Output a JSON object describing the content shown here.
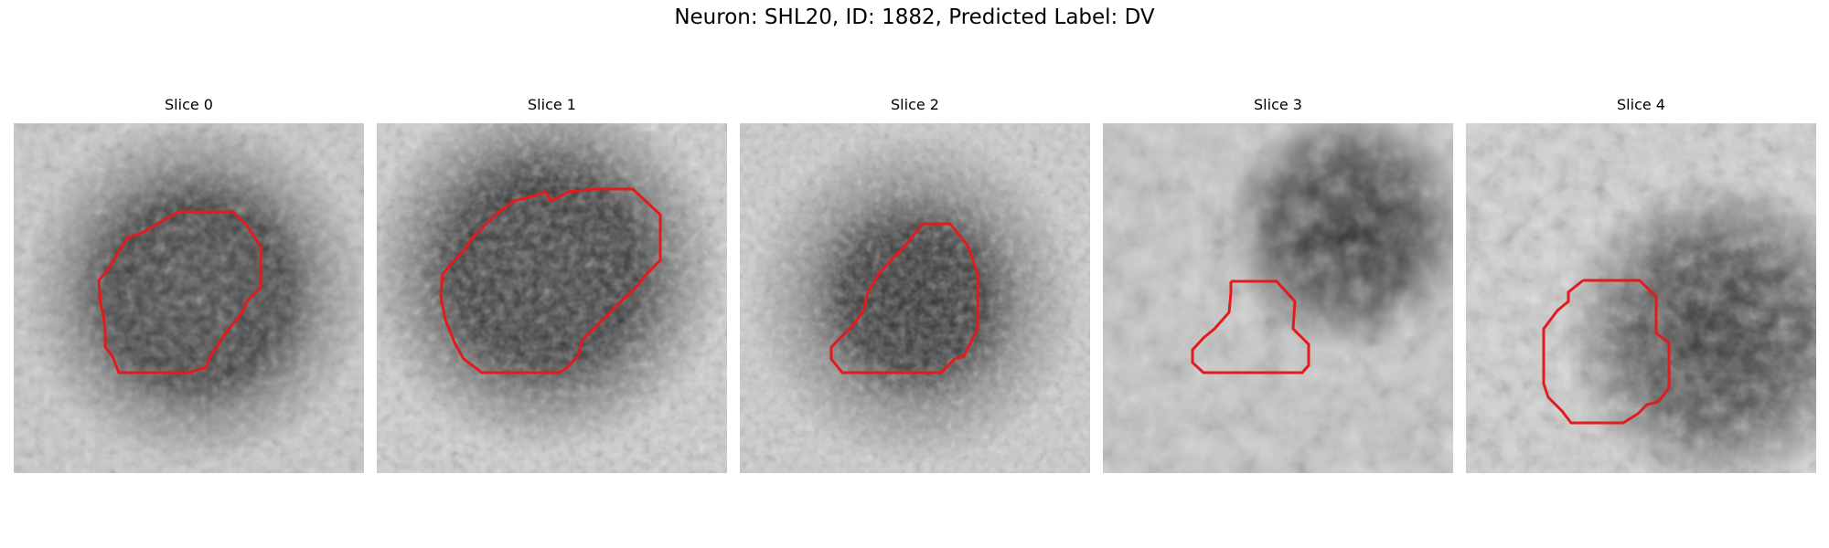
{
  "figure": {
    "title": "Neuron: SHL20, ID: 1882, Predicted Label: DV"
  },
  "outline_color": "#e41a1c",
  "panels": [
    {
      "title": "Slice 0"
    },
    {
      "title": "Slice 1"
    },
    {
      "title": "Slice 2"
    },
    {
      "title": "Slice 3"
    },
    {
      "title": "Slice 4"
    }
  ]
}
